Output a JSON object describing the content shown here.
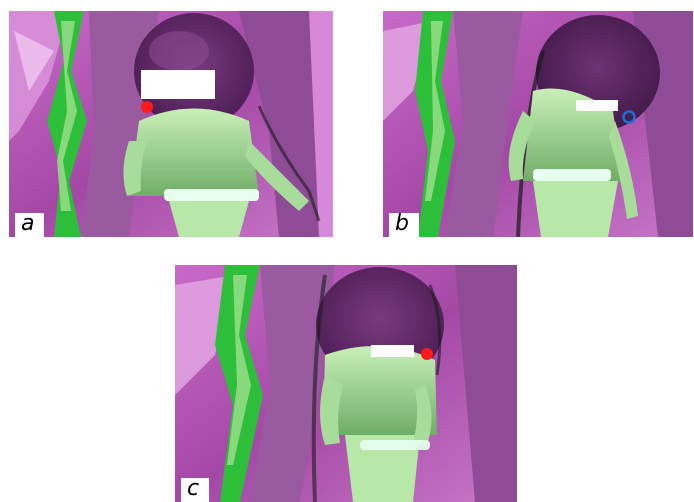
{
  "figure": {
    "panels": [
      {
        "id": "a",
        "label": "a",
        "marker": "filled-circle",
        "marker_color": "#ff1a1a"
      },
      {
        "id": "b",
        "label": "b",
        "marker": "ring",
        "marker_color": "#1f6fd6"
      },
      {
        "id": "c",
        "label": "c",
        "marker": "filled-circle",
        "marker_color": "#ff1a1a"
      }
    ]
  },
  "colors": {
    "magenta": "#b04fb0",
    "magenta_light": "#d488d4",
    "green": "#2dbf3a",
    "green_light": "#9fe08c",
    "dark": "#2a1030",
    "redaction": "#ffffff"
  }
}
